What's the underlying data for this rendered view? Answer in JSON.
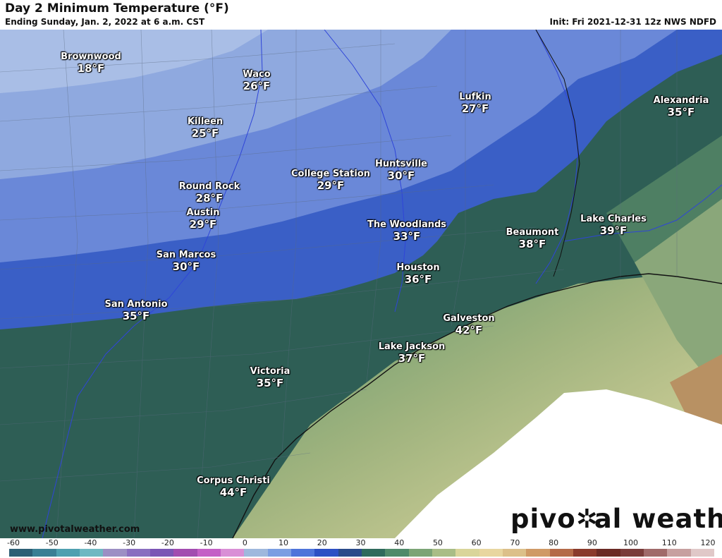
{
  "header": {
    "title": "Day 2 Minimum Temperature (°F)",
    "subtitle": "Ending Sunday, Jan. 2, 2022 at 6 a.m. CST",
    "init": "Init: Fri 2021-12-31 12z NWS NDFD"
  },
  "cities": [
    {
      "id": "brownwood",
      "name": "Brownwood",
      "temp": "18°F",
      "value": 18
    },
    {
      "id": "waco",
      "name": "Waco",
      "temp": "26°F",
      "value": 26
    },
    {
      "id": "killeen",
      "name": "Killeen",
      "temp": "25°F",
      "value": 25
    },
    {
      "id": "round-rock",
      "name": "Round Rock",
      "temp": "28°F",
      "value": 28
    },
    {
      "id": "austin",
      "name": "Austin",
      "temp": "29°F",
      "value": 29
    },
    {
      "id": "san-marcos",
      "name": "San Marcos",
      "temp": "30°F",
      "value": 30
    },
    {
      "id": "san-antonio",
      "name": "San Antonio",
      "temp": "35°F",
      "value": 35
    },
    {
      "id": "college-station",
      "name": "College Station",
      "temp": "29°F",
      "value": 29
    },
    {
      "id": "huntsville",
      "name": "Huntsville",
      "temp": "30°F",
      "value": 30
    },
    {
      "id": "lufkin",
      "name": "Lufkin",
      "temp": "27°F",
      "value": 27
    },
    {
      "id": "the-woodlands",
      "name": "The Woodlands",
      "temp": "33°F",
      "value": 33
    },
    {
      "id": "houston",
      "name": "Houston",
      "temp": "36°F",
      "value": 36
    },
    {
      "id": "beaumont",
      "name": "Beaumont",
      "temp": "38°F",
      "value": 38
    },
    {
      "id": "lake-charles",
      "name": "Lake Charles",
      "temp": "39°F",
      "value": 39
    },
    {
      "id": "alexandria",
      "name": "Alexandria",
      "temp": "35°F",
      "value": 35
    },
    {
      "id": "galveston",
      "name": "Galveston",
      "temp": "42°F",
      "value": 42
    },
    {
      "id": "lake-jackson",
      "name": "Lake Jackson",
      "temp": "37°F",
      "value": 37
    },
    {
      "id": "victoria",
      "name": "Victoria",
      "temp": "35°F",
      "value": 35
    },
    {
      "id": "corpus-christi",
      "name": "Corpus Christi",
      "temp": "44°F",
      "value": 44
    }
  ],
  "footer": {
    "website": "www.pivotalweather.com",
    "brand_left": "pivo",
    "brand_right": "al weather",
    "brand_icon": "gear-icon"
  },
  "scale": {
    "ticks": [
      "-60",
      "-50",
      "-40",
      "-30",
      "-20",
      "-10",
      "0",
      "10",
      "20",
      "30",
      "40",
      "50",
      "60",
      "70",
      "80",
      "90",
      "100",
      "110",
      "120"
    ],
    "colors": [
      "#2d5f75",
      "#3b7f94",
      "#4fa0b0",
      "#6fb8c2",
      "#9c8fc4",
      "#8a6ec0",
      "#7b55b5",
      "#a24cb0",
      "#c45fc6",
      "#d98fd6",
      "#9fb8dd",
      "#7b9ee2",
      "#4e74da",
      "#2d50c4",
      "#2a4a8a",
      "#2f6a5c",
      "#4f8a6a",
      "#7ca476",
      "#a9bd86",
      "#d9d59a",
      "#e8d6a0",
      "#dcc08a",
      "#cf9a66",
      "#b46a48",
      "#8a3a2c",
      "#6a2a24",
      "#7a3c3a",
      "#a06a6a",
      "#c7a0a0",
      "#e0c8c8"
    ]
  }
}
